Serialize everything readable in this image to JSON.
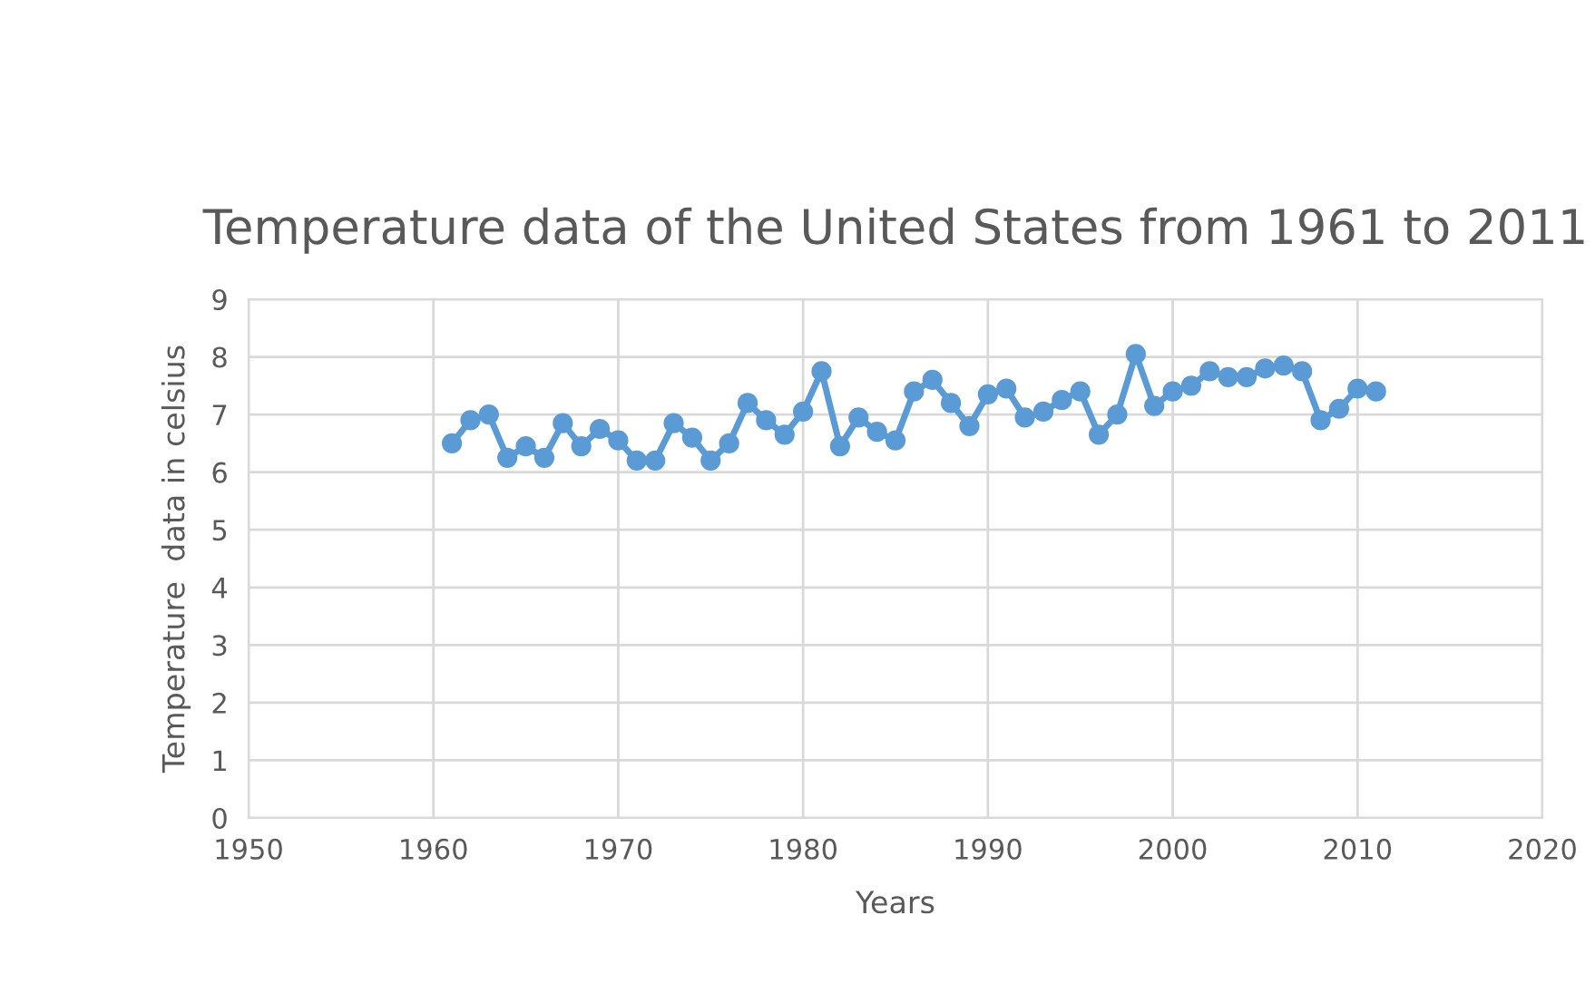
{
  "chart_data": {
    "type": "line",
    "title": "Temperature data of the United States from 1961 to 2011",
    "xlabel": "Years",
    "ylabel": "Temperature  data in celsius",
    "x": [
      1961,
      1962,
      1963,
      1964,
      1965,
      1966,
      1967,
      1968,
      1969,
      1970,
      1971,
      1972,
      1973,
      1974,
      1975,
      1976,
      1977,
      1978,
      1979,
      1980,
      1981,
      1982,
      1983,
      1984,
      1985,
      1986,
      1987,
      1988,
      1989,
      1990,
      1991,
      1992,
      1993,
      1994,
      1995,
      1996,
      1997,
      1998,
      1999,
      2000,
      2001,
      2002,
      2003,
      2004,
      2005,
      2006,
      2007,
      2008,
      2009,
      2010,
      2011
    ],
    "series": [
      {
        "color": "#5b9bd5",
        "values": [
          6.5,
          6.9,
          7.0,
          6.25,
          6.45,
          6.25,
          6.85,
          6.45,
          6.75,
          6.55,
          6.2,
          6.2,
          6.85,
          6.6,
          6.2,
          6.5,
          7.2,
          6.9,
          6.65,
          7.05,
          7.75,
          6.45,
          6.95,
          6.7,
          6.55,
          7.4,
          7.6,
          7.2,
          6.8,
          7.35,
          7.45,
          6.95,
          7.05,
          7.25,
          7.4,
          6.65,
          7.0,
          8.05,
          7.15,
          7.4,
          7.5,
          7.75,
          7.65,
          7.65,
          7.8,
          7.85,
          7.75,
          6.9,
          7.1,
          7.45,
          7.4
        ]
      }
    ],
    "xlim": [
      1950,
      2020
    ],
    "xticks": [
      1950,
      1960,
      1970,
      1980,
      1990,
      2000,
      2010,
      2020
    ],
    "ylim": [
      0,
      9
    ],
    "yticks": [
      0,
      1,
      2,
      3,
      4,
      5,
      6,
      7,
      8,
      9
    ],
    "grid": true,
    "marker": "circle",
    "line_style": "solid"
  }
}
